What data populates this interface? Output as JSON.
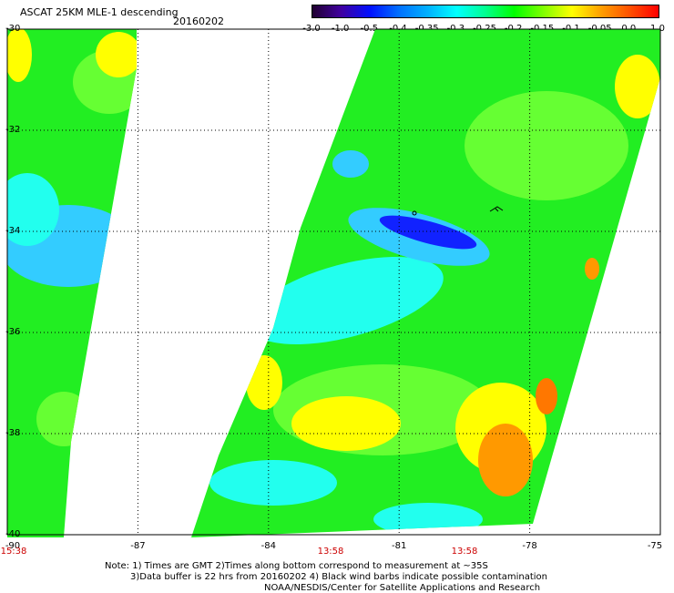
{
  "header": {
    "title": "ASCAT 25KM MLE-1 descending",
    "date": "20160202"
  },
  "colorbar": {
    "tick_labels": [
      "-3.0",
      "-1.0",
      "-0.5",
      "-0.4",
      "-0.35",
      "-0.3",
      "-0.25",
      "-0.2",
      "-0.15",
      "-0.1",
      "-0.05",
      "0.0",
      "1.0"
    ],
    "colors": [
      "#200030",
      "#4000a0",
      "#0010ff",
      "#0070ff",
      "#00b0ff",
      "#00ffff",
      "#00ff90",
      "#00ff00",
      "#80ff00",
      "#ffff00",
      "#ffa000",
      "#ff5000",
      "#ff0000"
    ]
  },
  "map": {
    "lat_labels": [
      "-30",
      "-32",
      "-34",
      "-36",
      "-38",
      "-40"
    ],
    "lon_labels": [
      "-90",
      "-87",
      "-84",
      "-81",
      "-78",
      "-75"
    ],
    "swath_times": [
      {
        "label": "15:38"
      },
      {
        "label": "13:58"
      },
      {
        "label": "13:58"
      }
    ],
    "field_colors": {
      "green": "#22ee22",
      "light_green": "#66ff33",
      "cyan": "#22ffee",
      "light_blue": "#33ccff",
      "blue": "#1122ff",
      "yellow": "#ffff00",
      "orange": "#ff9900",
      "dark_orange": "#ff7700"
    }
  },
  "notes": {
    "line1": "Note: 1) Times are GMT 2)Times along bottom correspond to measurement at ~35S",
    "line2": "3)Data buffer is 22 hrs from 20160202 4) Black wind barbs indicate possible contamination",
    "line3": "NOAA/NESDIS/Center for Satellite Applications and Research"
  }
}
